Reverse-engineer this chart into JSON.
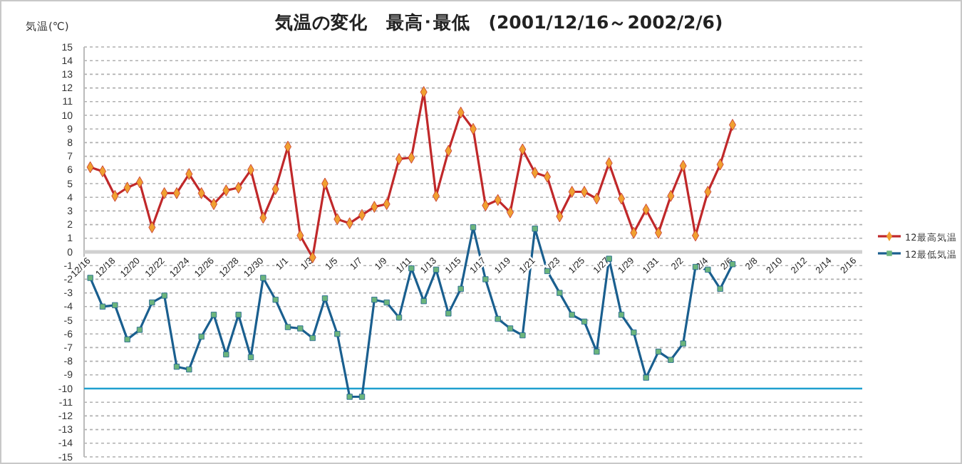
{
  "chart_data": {
    "type": "line",
    "title": "気温の変化　最高･最低　(2001/12/16～2002/2/6)",
    "ylabel": "気温(℃)",
    "categories": [
      "12/16",
      null,
      "12/18",
      null,
      "12/20",
      null,
      "12/22",
      null,
      "12/24",
      null,
      "12/26",
      null,
      "12/28",
      null,
      "12/30",
      null,
      "1/1",
      null,
      "1/3",
      null,
      "1/5",
      null,
      "1/7",
      null,
      "1/9",
      null,
      "1/11",
      null,
      "1/13",
      null,
      "1/15",
      null,
      "1/17",
      null,
      "1/19",
      null,
      "1/21",
      null,
      "1/23",
      null,
      "1/25",
      null,
      "1/27",
      null,
      "1/29",
      null,
      "1/31",
      null,
      "2/2",
      null,
      "2/4",
      null,
      "2/6",
      null,
      "2/8",
      null,
      "2/10",
      null,
      "2/12",
      null,
      "2/14",
      null,
      "2/16"
    ],
    "series": [
      {
        "name": "12最高気温",
        "color": "#c0282a",
        "marker": "diamond",
        "values": [
          6.2,
          5.9,
          4.1,
          4.7,
          5.1,
          1.8,
          4.3,
          4.3,
          5.7,
          4.3,
          3.5,
          4.5,
          4.7,
          6.0,
          2.5,
          4.6,
          7.7,
          1.2,
          -0.4,
          5.0,
          2.4,
          2.1,
          2.7,
          3.3,
          3.5,
          6.8,
          6.9,
          11.7,
          4.1,
          7.4,
          10.2,
          9.0,
          3.4,
          3.8,
          2.9,
          7.5,
          5.8,
          5.5,
          2.6,
          4.4,
          4.4,
          3.9,
          6.5,
          3.9,
          1.4,
          3.1,
          1.4,
          4.1,
          6.3,
          1.2,
          4.4,
          6.4,
          9.3,
          null,
          null,
          null,
          null,
          null,
          null,
          null,
          null,
          null,
          null
        ]
      },
      {
        "name": "12最低気温",
        "color": "#1a5f8f",
        "marker": "square",
        "values": [
          -1.9,
          -4.0,
          -3.9,
          -6.4,
          -5.7,
          -3.7,
          -3.2,
          -8.4,
          -8.6,
          -6.2,
          -4.6,
          -7.5,
          -4.6,
          -7.7,
          -1.9,
          -3.5,
          -5.5,
          -5.6,
          -6.3,
          -3.4,
          -6.0,
          -10.6,
          -10.6,
          -3.5,
          -3.7,
          -4.8,
          -1.2,
          -3.6,
          -1.3,
          -4.5,
          -2.7,
          1.8,
          -2.0,
          -4.9,
          -5.6,
          -6.1,
          1.7,
          -1.4,
          -3.0,
          -4.6,
          -5.1,
          -7.3,
          -0.5,
          -4.6,
          -5.9,
          -9.2,
          -7.3,
          -7.9,
          -6.7,
          -1.1,
          -1.3,
          -2.7,
          -0.9,
          null,
          null,
          null,
          null,
          null,
          null,
          null,
          null,
          null,
          null
        ]
      }
    ],
    "ylim": [
      -15,
      15
    ],
    "yticks": [
      -15,
      -14,
      -13,
      -12,
      -11,
      -10,
      -9,
      -8,
      -7,
      -6,
      -5,
      -4,
      -3,
      -2,
      -1,
      0,
      1,
      2,
      3,
      4,
      5,
      6,
      7,
      8,
      9,
      10,
      11,
      12,
      13,
      14,
      15
    ],
    "grid": "y",
    "legend": "right",
    "line_style": "solid",
    "ref_lines": [
      {
        "axis": "y",
        "value": -10,
        "color": "#1f9fcf"
      }
    ]
  }
}
